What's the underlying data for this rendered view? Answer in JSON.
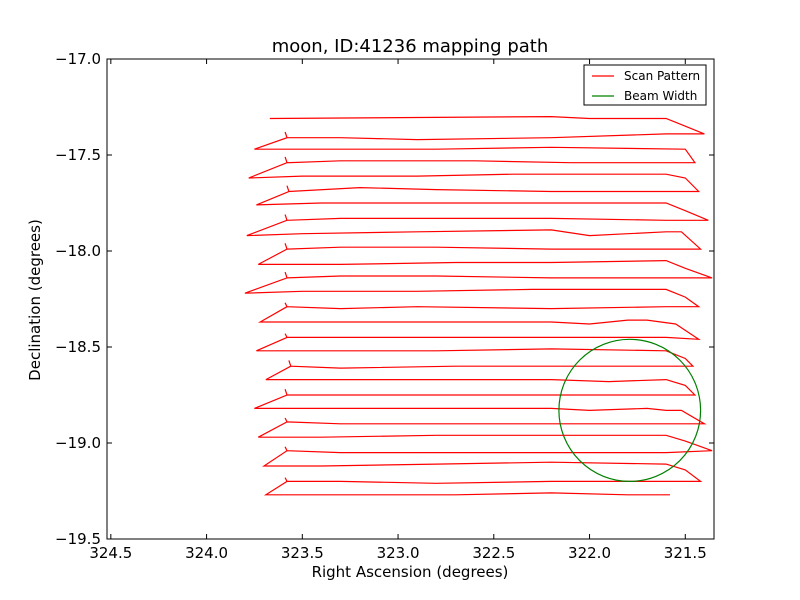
{
  "chart_data": {
    "type": "line",
    "title": "moon, ID:41236 mapping path",
    "xlabel": "Right Ascension (degrees)",
    "ylabel": "Declination (degrees)",
    "xlim": [
      324.52,
      321.35
    ],
    "ylim": [
      -19.5,
      -17.0
    ],
    "xticks": [
      {
        "value": 324.5,
        "label": "324.5"
      },
      {
        "value": 324.0,
        "label": "324.0"
      },
      {
        "value": 323.5,
        "label": "323.5"
      },
      {
        "value": 323.0,
        "label": "323.0"
      },
      {
        "value": 322.5,
        "label": "322.5"
      },
      {
        "value": 322.0,
        "label": "322.0"
      },
      {
        "value": 321.5,
        "label": "321.5"
      }
    ],
    "yticks": [
      {
        "value": -17.0,
        "label": "−17.0"
      },
      {
        "value": -17.5,
        "label": "−17.5"
      },
      {
        "value": -18.0,
        "label": "−18.0"
      },
      {
        "value": -18.5,
        "label": "−18.5"
      },
      {
        "value": -19.0,
        "label": "−19.0"
      },
      {
        "value": -19.5,
        "label": "−19.5"
      }
    ],
    "grid": false,
    "legend_position": "top-right",
    "series": [
      {
        "name": "Scan Pattern",
        "color": "#ff0000",
        "points": [
          [
            323.67,
            -17.31
          ],
          [
            322.2,
            -17.3
          ],
          [
            322.0,
            -17.31
          ],
          [
            321.6,
            -17.31
          ],
          [
            321.5,
            -17.35
          ],
          [
            321.4,
            -17.39
          ],
          [
            321.6,
            -17.39
          ],
          [
            322.2,
            -17.41
          ],
          [
            322.9,
            -17.42
          ],
          [
            323.3,
            -17.41
          ],
          [
            323.5,
            -17.41
          ],
          [
            323.58,
            -17.41
          ],
          [
            323.59,
            -17.38
          ],
          [
            323.58,
            -17.41
          ],
          [
            323.75,
            -17.47
          ],
          [
            323.5,
            -17.47
          ],
          [
            322.8,
            -17.47
          ],
          [
            322.2,
            -17.46
          ],
          [
            321.5,
            -17.47
          ],
          [
            321.45,
            -17.54
          ],
          [
            321.6,
            -17.54
          ],
          [
            322.1,
            -17.54
          ],
          [
            322.6,
            -17.53
          ],
          [
            323.3,
            -17.53
          ],
          [
            323.58,
            -17.54
          ],
          [
            323.59,
            -17.51
          ],
          [
            323.58,
            -17.54
          ],
          [
            323.78,
            -17.62
          ],
          [
            323.5,
            -17.61
          ],
          [
            322.9,
            -17.61
          ],
          [
            322.4,
            -17.6
          ],
          [
            321.9,
            -17.6
          ],
          [
            321.6,
            -17.6
          ],
          [
            321.5,
            -17.62
          ],
          [
            321.43,
            -17.69
          ],
          [
            321.6,
            -17.69
          ],
          [
            322.2,
            -17.69
          ],
          [
            322.8,
            -17.68
          ],
          [
            323.2,
            -17.67
          ],
          [
            323.57,
            -17.69
          ],
          [
            323.58,
            -17.66
          ],
          [
            323.57,
            -17.69
          ],
          [
            323.74,
            -17.76
          ],
          [
            323.4,
            -17.75
          ],
          [
            322.9,
            -17.75
          ],
          [
            322.2,
            -17.75
          ],
          [
            321.6,
            -17.75
          ],
          [
            321.5,
            -17.79
          ],
          [
            321.38,
            -17.84
          ],
          [
            321.6,
            -17.84
          ],
          [
            322.2,
            -17.83
          ],
          [
            322.8,
            -17.83
          ],
          [
            323.3,
            -17.83
          ],
          [
            323.58,
            -17.84
          ],
          [
            323.59,
            -17.81
          ],
          [
            323.58,
            -17.84
          ],
          [
            323.79,
            -17.92
          ],
          [
            323.5,
            -17.91
          ],
          [
            322.9,
            -17.9
          ],
          [
            322.2,
            -17.89
          ],
          [
            322.0,
            -17.92
          ],
          [
            321.8,
            -17.91
          ],
          [
            321.6,
            -17.9
          ],
          [
            321.52,
            -17.9
          ],
          [
            321.42,
            -17.99
          ],
          [
            321.6,
            -17.99
          ],
          [
            322.2,
            -17.99
          ],
          [
            322.8,
            -17.98
          ],
          [
            323.3,
            -17.98
          ],
          [
            323.58,
            -17.99
          ],
          [
            323.59,
            -17.96
          ],
          [
            323.58,
            -17.99
          ],
          [
            323.73,
            -18.07
          ],
          [
            323.3,
            -18.07
          ],
          [
            322.7,
            -18.06
          ],
          [
            322.2,
            -18.06
          ],
          [
            321.6,
            -18.05
          ],
          [
            321.5,
            -18.09
          ],
          [
            321.36,
            -18.14
          ],
          [
            321.6,
            -18.14
          ],
          [
            322.2,
            -18.14
          ],
          [
            322.8,
            -18.13
          ],
          [
            323.3,
            -18.13
          ],
          [
            323.58,
            -18.14
          ],
          [
            323.59,
            -18.11
          ],
          [
            323.58,
            -18.14
          ],
          [
            323.8,
            -18.22
          ],
          [
            323.5,
            -18.21
          ],
          [
            322.9,
            -18.21
          ],
          [
            322.3,
            -18.2
          ],
          [
            321.6,
            -18.2
          ],
          [
            321.5,
            -18.24
          ],
          [
            321.43,
            -18.29
          ],
          [
            321.6,
            -18.29
          ],
          [
            322.2,
            -18.3
          ],
          [
            322.9,
            -18.29
          ],
          [
            323.3,
            -18.3
          ],
          [
            323.58,
            -18.29
          ],
          [
            323.59,
            -18.27
          ],
          [
            323.58,
            -18.29
          ],
          [
            323.72,
            -18.37
          ],
          [
            323.4,
            -18.37
          ],
          [
            322.8,
            -18.37
          ],
          [
            322.4,
            -18.37
          ],
          [
            322.2,
            -18.37
          ],
          [
            322.0,
            -18.38
          ],
          [
            321.8,
            -18.36
          ],
          [
            321.7,
            -18.36
          ],
          [
            321.55,
            -18.38
          ],
          [
            321.43,
            -18.46
          ],
          [
            321.6,
            -18.45
          ],
          [
            322.2,
            -18.45
          ],
          [
            322.8,
            -18.45
          ],
          [
            323.3,
            -18.45
          ],
          [
            323.58,
            -18.45
          ],
          [
            323.59,
            -18.43
          ],
          [
            323.58,
            -18.45
          ],
          [
            323.74,
            -18.52
          ],
          [
            323.4,
            -18.52
          ],
          [
            322.8,
            -18.52
          ],
          [
            322.2,
            -18.51
          ],
          [
            321.6,
            -18.52
          ],
          [
            321.5,
            -18.56
          ],
          [
            321.46,
            -18.6
          ],
          [
            321.6,
            -18.6
          ],
          [
            322.1,
            -18.6
          ],
          [
            322.7,
            -18.6
          ],
          [
            323.3,
            -18.61
          ],
          [
            323.56,
            -18.6
          ],
          [
            323.57,
            -18.57
          ],
          [
            323.56,
            -18.6
          ],
          [
            323.69,
            -18.67
          ],
          [
            323.3,
            -18.67
          ],
          [
            322.7,
            -18.67
          ],
          [
            322.2,
            -18.67
          ],
          [
            321.9,
            -18.68
          ],
          [
            321.6,
            -18.67
          ],
          [
            321.5,
            -18.7
          ],
          [
            321.45,
            -18.75
          ],
          [
            321.6,
            -18.75
          ],
          [
            322.2,
            -18.75
          ],
          [
            322.8,
            -18.75
          ],
          [
            323.3,
            -18.75
          ],
          [
            323.58,
            -18.75
          ],
          [
            323.59,
            -18.72
          ],
          [
            323.58,
            -18.75
          ],
          [
            323.75,
            -18.82
          ],
          [
            323.4,
            -18.82
          ],
          [
            322.8,
            -18.82
          ],
          [
            322.2,
            -18.82
          ],
          [
            322.0,
            -18.83
          ],
          [
            321.7,
            -18.82
          ],
          [
            321.6,
            -18.83
          ],
          [
            321.52,
            -18.83
          ],
          [
            321.4,
            -18.9
          ],
          [
            321.6,
            -18.9
          ],
          [
            322.2,
            -18.9
          ],
          [
            322.8,
            -18.9
          ],
          [
            323.3,
            -18.9
          ],
          [
            323.58,
            -18.89
          ],
          [
            323.59,
            -18.87
          ],
          [
            323.58,
            -18.89
          ],
          [
            323.73,
            -18.97
          ],
          [
            323.4,
            -18.97
          ],
          [
            322.8,
            -18.96
          ],
          [
            322.2,
            -18.96
          ],
          [
            321.6,
            -18.96
          ],
          [
            321.5,
            -18.99
          ],
          [
            321.36,
            -19.04
          ],
          [
            321.6,
            -19.05
          ],
          [
            322.2,
            -19.05
          ],
          [
            322.8,
            -19.05
          ],
          [
            323.3,
            -19.05
          ],
          [
            323.58,
            -19.04
          ],
          [
            323.59,
            -19.02
          ],
          [
            323.58,
            -19.04
          ],
          [
            323.7,
            -19.12
          ],
          [
            323.4,
            -19.12
          ],
          [
            322.8,
            -19.11
          ],
          [
            322.2,
            -19.1
          ],
          [
            321.6,
            -19.11
          ],
          [
            321.5,
            -19.14
          ],
          [
            321.42,
            -19.2
          ],
          [
            321.6,
            -19.2
          ],
          [
            322.2,
            -19.2
          ],
          [
            322.8,
            -19.21
          ],
          [
            323.3,
            -19.2
          ],
          [
            323.58,
            -19.2
          ],
          [
            323.59,
            -19.18
          ],
          [
            323.58,
            -19.2
          ],
          [
            323.69,
            -19.27
          ],
          [
            323.3,
            -19.27
          ],
          [
            322.7,
            -19.27
          ],
          [
            322.2,
            -19.26
          ],
          [
            321.8,
            -19.27
          ],
          [
            321.58,
            -19.27
          ]
        ]
      },
      {
        "name": "Beam Width",
        "color": "#008000",
        "shape": "circle",
        "center": [
          321.79,
          -18.83
        ],
        "radius": 0.37
      }
    ]
  }
}
